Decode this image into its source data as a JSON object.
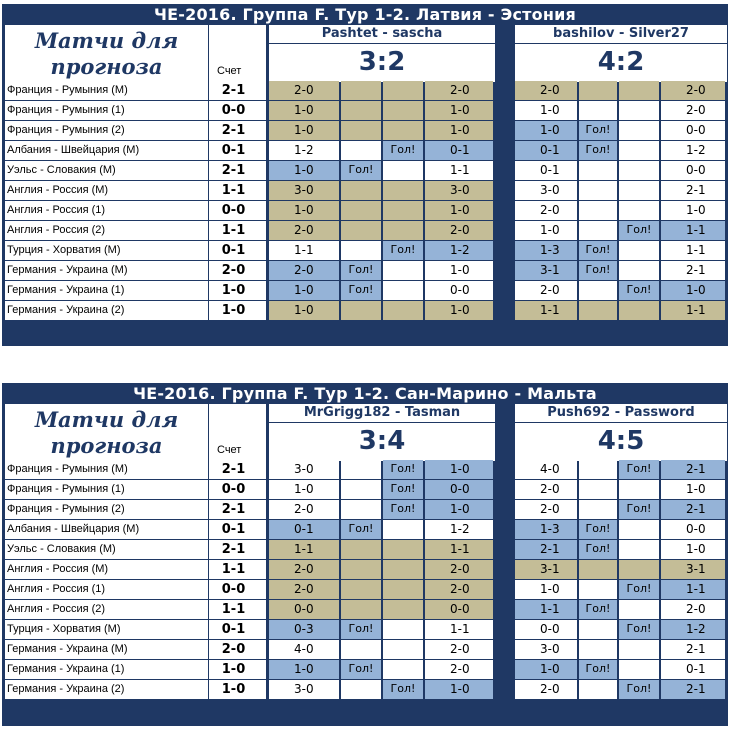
{
  "blocks": [
    {
      "title": "ЧЕ-2016. Группа F. Тур 1-2. Латвия - Эстония",
      "header_line1": "Матчи для",
      "header_line2": "прогноза",
      "score_header": "Счет",
      "pairs": [
        {
          "names": "Pashtet - sascha",
          "score": "3:2"
        },
        {
          "names": "bashilov - Silver27",
          "score": "4:2"
        }
      ],
      "matches": [
        {
          "match": "Франция - Румыния (М)",
          "result": "2-1",
          "cells": [
            [
              "2-0",
              "tan"
            ],
            [
              "",
              "tan"
            ],
            [
              "",
              "tan"
            ],
            [
              "2-0",
              "tan"
            ],
            [
              "2-0",
              "tan"
            ],
            [
              "",
              "tan"
            ],
            [
              "",
              "tan"
            ],
            [
              "2-0",
              "tan"
            ]
          ]
        },
        {
          "match": "Франция - Румыния (1)",
          "result": "0-0",
          "cells": [
            [
              "1-0",
              "tan"
            ],
            [
              "",
              "tan"
            ],
            [
              "",
              "tan"
            ],
            [
              "1-0",
              "tan"
            ],
            [
              "1-0",
              "white"
            ],
            [
              "",
              "white"
            ],
            [
              "",
              "white"
            ],
            [
              "2-0",
              "white"
            ]
          ]
        },
        {
          "match": "Франция - Румыния (2)",
          "result": "2-1",
          "cells": [
            [
              "1-0",
              "tan"
            ],
            [
              "",
              "tan"
            ],
            [
              "",
              "tan"
            ],
            [
              "1-0",
              "tan"
            ],
            [
              "1-0",
              "blue"
            ],
            [
              "Гол!",
              "blue"
            ],
            [
              "",
              "white"
            ],
            [
              "0-0",
              "white"
            ]
          ]
        },
        {
          "match": "Албания - Швейцария (М)",
          "result": "0-1",
          "cells": [
            [
              "1-2",
              "white"
            ],
            [
              "",
              "white"
            ],
            [
              "Гол!",
              "blue"
            ],
            [
              "0-1",
              "blue"
            ],
            [
              "0-1",
              "blue"
            ],
            [
              "Гол!",
              "blue"
            ],
            [
              "",
              "white"
            ],
            [
              "1-2",
              "white"
            ]
          ]
        },
        {
          "match": "Уэльс - Словакия (М)",
          "result": "2-1",
          "cells": [
            [
              "1-0",
              "blue"
            ],
            [
              "Гол!",
              "blue"
            ],
            [
              "",
              "white"
            ],
            [
              "1-1",
              "white"
            ],
            [
              "0-1",
              "white"
            ],
            [
              "",
              "white"
            ],
            [
              "",
              "white"
            ],
            [
              "0-0",
              "white"
            ]
          ]
        },
        {
          "match": "Англия - Россия (М)",
          "result": "1-1",
          "cells": [
            [
              "3-0",
              "tan"
            ],
            [
              "",
              "tan"
            ],
            [
              "",
              "tan"
            ],
            [
              "3-0",
              "tan"
            ],
            [
              "3-0",
              "white"
            ],
            [
              "",
              "white"
            ],
            [
              "",
              "white"
            ],
            [
              "2-1",
              "white"
            ]
          ]
        },
        {
          "match": "Англия - Россия (1)",
          "result": "0-0",
          "cells": [
            [
              "1-0",
              "tan"
            ],
            [
              "",
              "tan"
            ],
            [
              "",
              "tan"
            ],
            [
              "1-0",
              "tan"
            ],
            [
              "2-0",
              "white"
            ],
            [
              "",
              "white"
            ],
            [
              "",
              "white"
            ],
            [
              "1-0",
              "white"
            ]
          ]
        },
        {
          "match": "Англия - Россия (2)",
          "result": "1-1",
          "cells": [
            [
              "2-0",
              "tan"
            ],
            [
              "",
              "tan"
            ],
            [
              "",
              "tan"
            ],
            [
              "2-0",
              "tan"
            ],
            [
              "1-0",
              "white"
            ],
            [
              "",
              "white"
            ],
            [
              "Гол!",
              "blue"
            ],
            [
              "1-1",
              "blue"
            ]
          ]
        },
        {
          "match": "Турция - Хорватия (М)",
          "result": "0-1",
          "cells": [
            [
              "1-1",
              "white"
            ],
            [
              "",
              "white"
            ],
            [
              "Гол!",
              "blue"
            ],
            [
              "1-2",
              "blue"
            ],
            [
              "1-3",
              "blue"
            ],
            [
              "Гол!",
              "blue"
            ],
            [
              "",
              "white"
            ],
            [
              "1-1",
              "white"
            ]
          ]
        },
        {
          "match": "Германия - Украина (М)",
          "result": "2-0",
          "cells": [
            [
              "2-0",
              "blue"
            ],
            [
              "Гол!",
              "blue"
            ],
            [
              "",
              "white"
            ],
            [
              "1-0",
              "white"
            ],
            [
              "3-1",
              "blue"
            ],
            [
              "Гол!",
              "blue"
            ],
            [
              "",
              "white"
            ],
            [
              "2-1",
              "white"
            ]
          ]
        },
        {
          "match": "Германия - Украина (1)",
          "result": "1-0",
          "cells": [
            [
              "1-0",
              "blue"
            ],
            [
              "Гол!",
              "blue"
            ],
            [
              "",
              "white"
            ],
            [
              "0-0",
              "white"
            ],
            [
              "2-0",
              "white"
            ],
            [
              "",
              "white"
            ],
            [
              "Гол!",
              "blue"
            ],
            [
              "1-0",
              "blue"
            ]
          ]
        },
        {
          "match": "Германия - Украина (2)",
          "result": "1-0",
          "cells": [
            [
              "1-0",
              "tan"
            ],
            [
              "",
              "tan"
            ],
            [
              "",
              "tan"
            ],
            [
              "1-0",
              "tan"
            ],
            [
              "1-1",
              "tan"
            ],
            [
              "",
              "tan"
            ],
            [
              "",
              "tan"
            ],
            [
              "1-1",
              "tan"
            ]
          ]
        }
      ]
    },
    {
      "title": "ЧЕ-2016. Группа F. Тур 1-2. Сан-Марино - Мальта",
      "header_line1": "Матчи для",
      "header_line2": "прогноза",
      "score_header": "Счет",
      "pairs": [
        {
          "names": "MrGrigg182 - Tasman",
          "score": "3:4"
        },
        {
          "names": "Push692 - Password",
          "score": "4:5"
        }
      ],
      "matches": [
        {
          "match": "Франция - Румыния (М)",
          "result": "2-1",
          "cells": [
            [
              "3-0",
              "white"
            ],
            [
              "",
              "white"
            ],
            [
              "Гол!",
              "blue"
            ],
            [
              "1-0",
              "blue"
            ],
            [
              "4-0",
              "white"
            ],
            [
              "",
              "white"
            ],
            [
              "Гол!",
              "blue"
            ],
            [
              "2-1",
              "blue"
            ]
          ]
        },
        {
          "match": "Франция - Румыния (1)",
          "result": "0-0",
          "cells": [
            [
              "1-0",
              "white"
            ],
            [
              "",
              "white"
            ],
            [
              "Гол!",
              "blue"
            ],
            [
              "0-0",
              "blue"
            ],
            [
              "2-0",
              "white"
            ],
            [
              "",
              "white"
            ],
            [
              "",
              "white"
            ],
            [
              "1-0",
              "white"
            ]
          ]
        },
        {
          "match": "Франция - Румыния (2)",
          "result": "2-1",
          "cells": [
            [
              "2-0",
              "white"
            ],
            [
              "",
              "white"
            ],
            [
              "Гол!",
              "blue"
            ],
            [
              "1-0",
              "blue"
            ],
            [
              "2-0",
              "white"
            ],
            [
              "",
              "white"
            ],
            [
              "Гол!",
              "blue"
            ],
            [
              "2-1",
              "blue"
            ]
          ]
        },
        {
          "match": "Албания - Швейцария (М)",
          "result": "0-1",
          "cells": [
            [
              "0-1",
              "blue"
            ],
            [
              "Гол!",
              "blue"
            ],
            [
              "",
              "white"
            ],
            [
              "1-2",
              "white"
            ],
            [
              "1-3",
              "blue"
            ],
            [
              "Гол!",
              "blue"
            ],
            [
              "",
              "white"
            ],
            [
              "0-0",
              "white"
            ]
          ]
        },
        {
          "match": "Уэльс - Словакия (М)",
          "result": "2-1",
          "cells": [
            [
              "1-1",
              "tan"
            ],
            [
              "",
              "tan"
            ],
            [
              "",
              "tan"
            ],
            [
              "1-1",
              "tan"
            ],
            [
              "2-1",
              "blue"
            ],
            [
              "Гол!",
              "blue"
            ],
            [
              "",
              "white"
            ],
            [
              "1-0",
              "white"
            ]
          ]
        },
        {
          "match": "Англия - Россия (М)",
          "result": "1-1",
          "cells": [
            [
              "2-0",
              "tan"
            ],
            [
              "",
              "tan"
            ],
            [
              "",
              "tan"
            ],
            [
              "2-0",
              "tan"
            ],
            [
              "3-1",
              "tan"
            ],
            [
              "",
              "tan"
            ],
            [
              "",
              "tan"
            ],
            [
              "3-1",
              "tan"
            ]
          ]
        },
        {
          "match": "Англия - Россия (1)",
          "result": "0-0",
          "cells": [
            [
              "2-0",
              "tan"
            ],
            [
              "",
              "tan"
            ],
            [
              "",
              "tan"
            ],
            [
              "2-0",
              "tan"
            ],
            [
              "1-0",
              "white"
            ],
            [
              "",
              "white"
            ],
            [
              "Гол!",
              "blue"
            ],
            [
              "1-1",
              "blue"
            ]
          ]
        },
        {
          "match": "Англия - Россия (2)",
          "result": "1-1",
          "cells": [
            [
              "0-0",
              "tan"
            ],
            [
              "",
              "tan"
            ],
            [
              "",
              "tan"
            ],
            [
              "0-0",
              "tan"
            ],
            [
              "1-1",
              "blue"
            ],
            [
              "Гол!",
              "blue"
            ],
            [
              "",
              "white"
            ],
            [
              "2-0",
              "white"
            ]
          ]
        },
        {
          "match": "Турция - Хорватия (М)",
          "result": "0-1",
          "cells": [
            [
              "0-3",
              "blue"
            ],
            [
              "Гол!",
              "blue"
            ],
            [
              "",
              "white"
            ],
            [
              "1-1",
              "white"
            ],
            [
              "0-0",
              "white"
            ],
            [
              "",
              "white"
            ],
            [
              "Гол!",
              "blue"
            ],
            [
              "1-2",
              "blue"
            ]
          ]
        },
        {
          "match": "Германия - Украина (М)",
          "result": "2-0",
          "cells": [
            [
              "4-0",
              "white"
            ],
            [
              "",
              "white"
            ],
            [
              "",
              "white"
            ],
            [
              "2-0",
              "white"
            ],
            [
              "3-0",
              "white"
            ],
            [
              "",
              "white"
            ],
            [
              "",
              "white"
            ],
            [
              "2-1",
              "white"
            ]
          ]
        },
        {
          "match": "Германия - Украина (1)",
          "result": "1-0",
          "cells": [
            [
              "1-0",
              "blue"
            ],
            [
              "Гол!",
              "blue"
            ],
            [
              "",
              "white"
            ],
            [
              "2-0",
              "white"
            ],
            [
              "1-0",
              "blue"
            ],
            [
              "Гол!",
              "blue"
            ],
            [
              "",
              "white"
            ],
            [
              "0-1",
              "white"
            ]
          ]
        },
        {
          "match": "Германия - Украина (2)",
          "result": "1-0",
          "cells": [
            [
              "3-0",
              "white"
            ],
            [
              "",
              "white"
            ],
            [
              "Гол!",
              "blue"
            ],
            [
              "1-0",
              "blue"
            ],
            [
              "2-0",
              "white"
            ],
            [
              "",
              "white"
            ],
            [
              "Гол!",
              "blue"
            ],
            [
              "2-1",
              "blue"
            ]
          ]
        }
      ],
      "colors": {
        "frame": "#1f3864",
        "tan": "#c4bd97",
        "blue": "#95b3d7"
      }
    }
  ]
}
